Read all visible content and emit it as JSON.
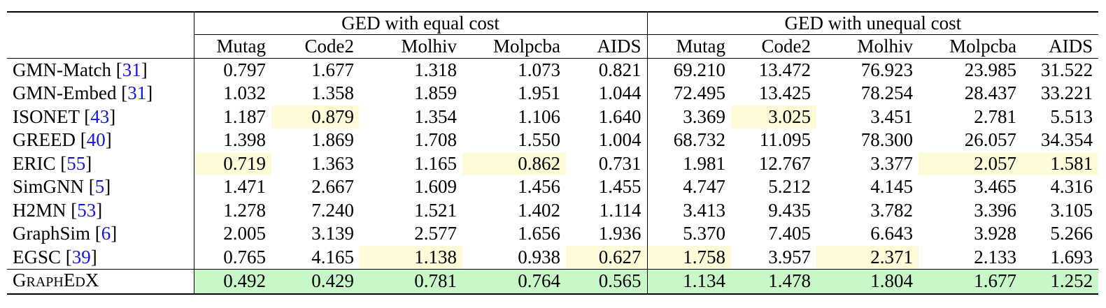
{
  "colors": {
    "second_best_highlight": "#fefbd8",
    "best_highlight": "#c8f7c8",
    "citation": "#1515d8"
  },
  "table": {
    "groups": [
      "GED with equal cost",
      "GED with unequal cost"
    ],
    "columns": [
      "Mutag",
      "Code2",
      "Molhiv",
      "Molpcba",
      "AIDS",
      "Mutag",
      "Code2",
      "Molhiv",
      "Molpcba",
      "AIDS"
    ],
    "rows": [
      {
        "method": "GMN-Match",
        "cite": "31",
        "values": [
          "0.797",
          "1.677",
          "1.318",
          "1.073",
          "0.821",
          "69.210",
          "13.472",
          "76.923",
          "23.985",
          "31.522"
        ],
        "hl": []
      },
      {
        "method": "GMN-Embed",
        "cite": "31",
        "values": [
          "1.032",
          "1.358",
          "1.859",
          "1.951",
          "1.044",
          "72.495",
          "13.425",
          "78.254",
          "28.437",
          "33.221"
        ],
        "hl": []
      },
      {
        "method": "ISONET",
        "cite": "43",
        "values": [
          "1.187",
          "0.879",
          "1.354",
          "1.106",
          "1.640",
          "3.369",
          "3.025",
          "3.451",
          "2.781",
          "5.513"
        ],
        "hl": [
          1,
          6
        ]
      },
      {
        "method": "GREED",
        "cite": "40",
        "values": [
          "1.398",
          "1.869",
          "1.708",
          "1.550",
          "1.004",
          "68.732",
          "11.095",
          "78.300",
          "26.057",
          "34.354"
        ],
        "hl": []
      },
      {
        "method": "ERIC",
        "cite": "55",
        "values": [
          "0.719",
          "1.363",
          "1.165",
          "0.862",
          "0.731",
          "1.981",
          "12.767",
          "3.377",
          "2.057",
          "1.581"
        ],
        "hl": [
          0,
          3,
          8,
          9
        ]
      },
      {
        "method": "SimGNN",
        "cite": "5",
        "values": [
          "1.471",
          "2.667",
          "1.609",
          "1.456",
          "1.455",
          "4.747",
          "5.212",
          "4.145",
          "3.465",
          "4.316"
        ],
        "hl": []
      },
      {
        "method": "H2MN",
        "cite": "53",
        "values": [
          "1.278",
          "7.240",
          "1.521",
          "1.402",
          "1.114",
          "3.413",
          "9.435",
          "3.782",
          "3.396",
          "3.105"
        ],
        "hl": []
      },
      {
        "method": "GraphSim",
        "cite": "6",
        "values": [
          "2.005",
          "3.139",
          "2.577",
          "1.656",
          "1.936",
          "5.370",
          "7.405",
          "6.643",
          "3.928",
          "5.266"
        ],
        "hl": []
      },
      {
        "method": "EGSC",
        "cite": "39",
        "values": [
          "0.765",
          "4.165",
          "1.138",
          "0.938",
          "0.627",
          "1.758",
          "3.957",
          "2.371",
          "2.133",
          "1.693"
        ],
        "hl": [
          2,
          4,
          5,
          7
        ]
      }
    ],
    "ours": {
      "method_parts": [
        [
          "G",
          "RAPH"
        ],
        [
          "E",
          "D"
        ],
        [
          "X",
          ""
        ]
      ],
      "values": [
        "0.492",
        "0.429",
        "0.781",
        "0.764",
        "0.565",
        "1.134",
        "1.478",
        "1.804",
        "1.677",
        "1.252"
      ]
    }
  }
}
